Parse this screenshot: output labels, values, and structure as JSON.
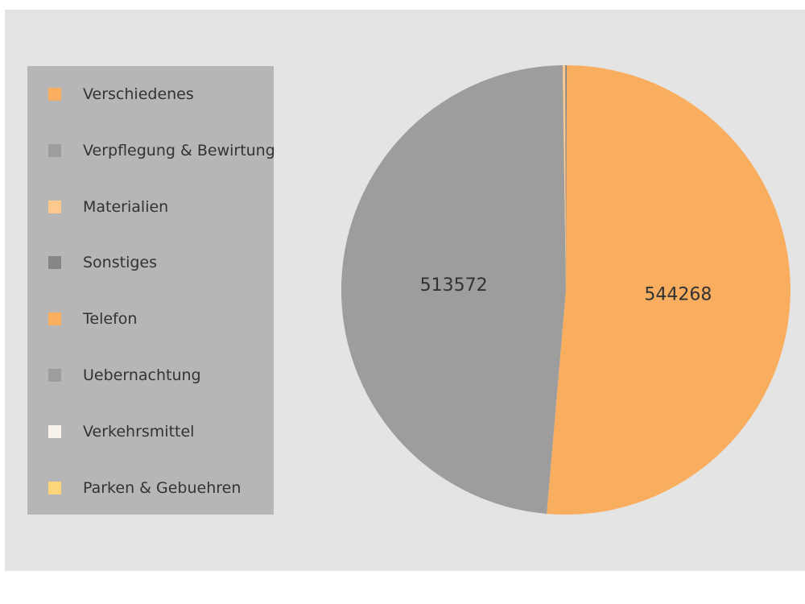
{
  "chart_data": {
    "type": "pie",
    "categories": [
      "Verschiedenes",
      "Verpflegung & Bewirtung",
      "Materialien",
      "Sonstiges",
      "Telefon",
      "Uebernachtung",
      "Verkehrsmittel",
      "Parken & Gebuehren"
    ],
    "values": [
      544268,
      513572,
      1900,
      1200,
      0,
      0,
      0,
      0
    ],
    "colors": [
      "#f9ad5e",
      "#9d9d9d",
      "#fdc98c",
      "#868686",
      "#f9ad5e",
      "#9d9d9d",
      "#f7f3ea",
      "#fdd57a"
    ],
    "slice_labels": [
      "544268",
      "513572",
      "",
      "",
      "",
      "",
      "",
      ""
    ],
    "legend_position": "left",
    "title": "",
    "background": "#e4e4e4",
    "legend_background": "#b6b6b6"
  }
}
